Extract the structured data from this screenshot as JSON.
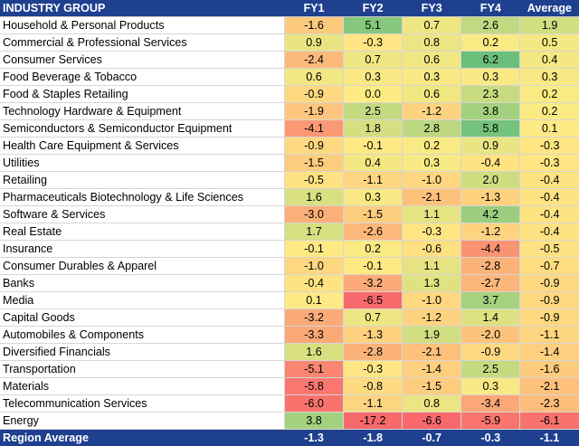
{
  "chart_data": {
    "type": "table",
    "columns": [
      "INDUSTRY GROUP",
      "FY1",
      "FY2",
      "FY3",
      "FY4",
      "Average"
    ],
    "rows": [
      {
        "name": "Household & Personal Products",
        "values": [
          -1.6,
          5.1,
          0.7,
          2.6,
          1.9
        ]
      },
      {
        "name": "Commercial & Professional Services",
        "values": [
          0.9,
          -0.3,
          0.8,
          0.2,
          0.5
        ]
      },
      {
        "name": "Consumer Services",
        "values": [
          -2.4,
          0.7,
          0.6,
          6.2,
          0.4
        ]
      },
      {
        "name": "Food Beverage & Tobacco",
        "values": [
          0.6,
          0.3,
          0.3,
          0.3,
          0.3
        ]
      },
      {
        "name": "Food & Staples Retailing",
        "values": [
          -0.9,
          0.0,
          0.6,
          2.3,
          0.2
        ]
      },
      {
        "name": "Technology Hardware & Equipment",
        "values": [
          -1.9,
          2.5,
          -1.2,
          3.8,
          0.2
        ]
      },
      {
        "name": "Semiconductors & Semiconductor Equipment",
        "values": [
          -4.1,
          1.8,
          2.8,
          5.8,
          0.1
        ]
      },
      {
        "name": "Health Care Equipment & Services",
        "values": [
          -0.9,
          -0.1,
          0.2,
          0.9,
          -0.3
        ]
      },
      {
        "name": "Utilities",
        "values": [
          -1.5,
          0.4,
          0.3,
          -0.4,
          -0.3
        ]
      },
      {
        "name": "Retailing",
        "values": [
          -0.5,
          -1.1,
          -1.0,
          2.0,
          -0.4
        ]
      },
      {
        "name": "Pharmaceuticals Biotechnology & Life Sciences",
        "values": [
          1.6,
          0.3,
          -2.1,
          -1.3,
          -0.4
        ]
      },
      {
        "name": "Software & Services",
        "values": [
          -3.0,
          -1.5,
          1.1,
          4.2,
          -0.4
        ]
      },
      {
        "name": "Real Estate",
        "values": [
          1.7,
          -2.6,
          -0.3,
          -1.2,
          -0.4
        ]
      },
      {
        "name": "Insurance",
        "values": [
          -0.1,
          0.2,
          -0.6,
          -4.4,
          -0.5
        ]
      },
      {
        "name": "Consumer Durables & Apparel",
        "values": [
          -1.0,
          -0.1,
          1.1,
          -2.8,
          -0.7
        ]
      },
      {
        "name": "Banks",
        "values": [
          -0.4,
          -3.2,
          1.3,
          -2.7,
          -0.9
        ]
      },
      {
        "name": "Media",
        "values": [
          0.1,
          -6.5,
          -1.0,
          3.7,
          -0.9
        ]
      },
      {
        "name": "Capital Goods",
        "values": [
          -3.2,
          0.7,
          -1.2,
          1.4,
          -0.9
        ]
      },
      {
        "name": "Automobiles & Components",
        "values": [
          -3.3,
          -1.3,
          1.9,
          -2.0,
          -1.1
        ]
      },
      {
        "name": "Diversified Financials",
        "values": [
          1.6,
          -2.8,
          -2.1,
          -0.9,
          -1.4
        ]
      },
      {
        "name": "Transportation",
        "values": [
          -5.1,
          -0.3,
          -1.4,
          2.5,
          -1.6
        ]
      },
      {
        "name": "Materials",
        "values": [
          -5.8,
          -0.8,
          -1.5,
          0.3,
          -2.1
        ]
      },
      {
        "name": "Telecommunication Services",
        "values": [
          -6.0,
          -1.1,
          0.8,
          -3.4,
          -2.3
        ]
      },
      {
        "name": "Energy",
        "values": [
          3.8,
          -17.2,
          -6.6,
          -5.9,
          -6.1
        ]
      }
    ],
    "footer": {
      "name": "Region Average",
      "values": [
        -1.3,
        -1.8,
        -0.7,
        -0.3,
        -1.1
      ]
    }
  }
}
